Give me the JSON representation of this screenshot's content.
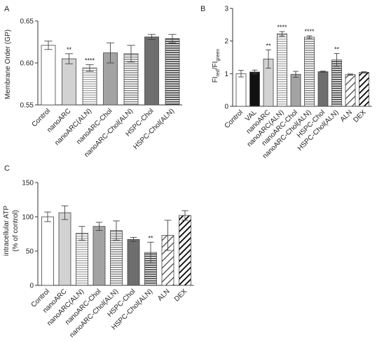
{
  "chart_data": [
    {
      "type": "bar",
      "panel_label": "A",
      "title": "",
      "ylabel": "Membrane Order (GP)",
      "ylim": [
        0.55,
        0.65
      ],
      "yticks": [
        "0.55",
        "0.60",
        "0.65"
      ],
      "ytick_values": [
        0.55,
        0.6,
        0.65
      ],
      "grid": false,
      "categories": [
        "Control",
        "nanoARC",
        "nanoARC(ALN)",
        "nanoARC-Chol",
        "nanoARC-Chol(ALN)",
        "HSPC-Chol",
        "HSPC-Chol(ALN)"
      ],
      "values": [
        0.621,
        0.605,
        0.594,
        0.612,
        0.611,
        0.631,
        0.629
      ],
      "errors": [
        0.005,
        0.006,
        0.004,
        0.012,
        0.01,
        0.003,
        0.005
      ],
      "significance": [
        "",
        "**",
        "****",
        "",
        "",
        "",
        ""
      ],
      "bar_styles": [
        "white",
        "light",
        "hlines",
        "mid",
        "hlines-mid",
        "dark",
        "hlines-dark"
      ]
    },
    {
      "type": "bar",
      "panel_label": "B",
      "title": "",
      "ylabel": "FI",
      "ylabel_sub1": "red",
      "ylabel_mid": "/FI",
      "ylabel_sub2": "green",
      "ylim": [
        0,
        3
      ],
      "yticks": [
        "0",
        "1",
        "2",
        "3"
      ],
      "ytick_values": [
        0,
        1,
        2,
        3
      ],
      "grid": false,
      "categories": [
        "Control",
        "VAL",
        "nanoARC",
        "nanoARC(ALN)",
        "nanoARC-Chol",
        "nanoARC-Chol(ALN)",
        "HSPC-Chol",
        "HSPC-Chol(ALN)",
        "ALN",
        "DEX"
      ],
      "values": [
        1.0,
        1.05,
        1.45,
        2.22,
        0.98,
        2.12,
        1.06,
        1.42,
        0.97,
        1.04
      ],
      "errors": [
        0.1,
        0.06,
        0.28,
        0.07,
        0.09,
        0.04,
        0.02,
        0.2,
        0.02,
        0.02
      ],
      "significance": [
        "",
        "",
        "**",
        "****",
        "",
        "****",
        "",
        "**",
        "",
        ""
      ],
      "bar_styles": [
        "white",
        "black",
        "light",
        "hlines",
        "mid",
        "hlines-mid",
        "dark",
        "hlines-dark",
        "diag",
        "diag-black"
      ]
    },
    {
      "type": "bar",
      "panel_label": "C",
      "title": "",
      "ylabel": "intracellular ATP",
      "ylabel2": "(% of control)",
      "ylim": [
        0,
        150
      ],
      "yticks": [
        "0",
        "50",
        "100",
        "150"
      ],
      "ytick_values": [
        0,
        50,
        100,
        150
      ],
      "grid": false,
      "categories": [
        "Control",
        "nanoARC",
        "nanoARC(ALN)",
        "nanoARC-Chol",
        "nanoARC-Chol(ALN)",
        "HSPC-Chol",
        "HSPC-Chol(ALN)",
        "ALN",
        "DEX"
      ],
      "values": [
        100,
        106,
        76,
        86,
        80,
        67,
        48,
        73,
        102
      ],
      "errors": [
        7,
        10,
        10,
        6,
        14,
        3,
        15,
        22,
        7
      ],
      "significance": [
        "",
        "",
        "",
        "",
        "",
        "",
        "**",
        "",
        ""
      ],
      "bar_styles": [
        "white",
        "light",
        "hlines",
        "mid",
        "hlines-mid",
        "dark",
        "hlines-dark",
        "diag",
        "diag-black"
      ]
    }
  ]
}
